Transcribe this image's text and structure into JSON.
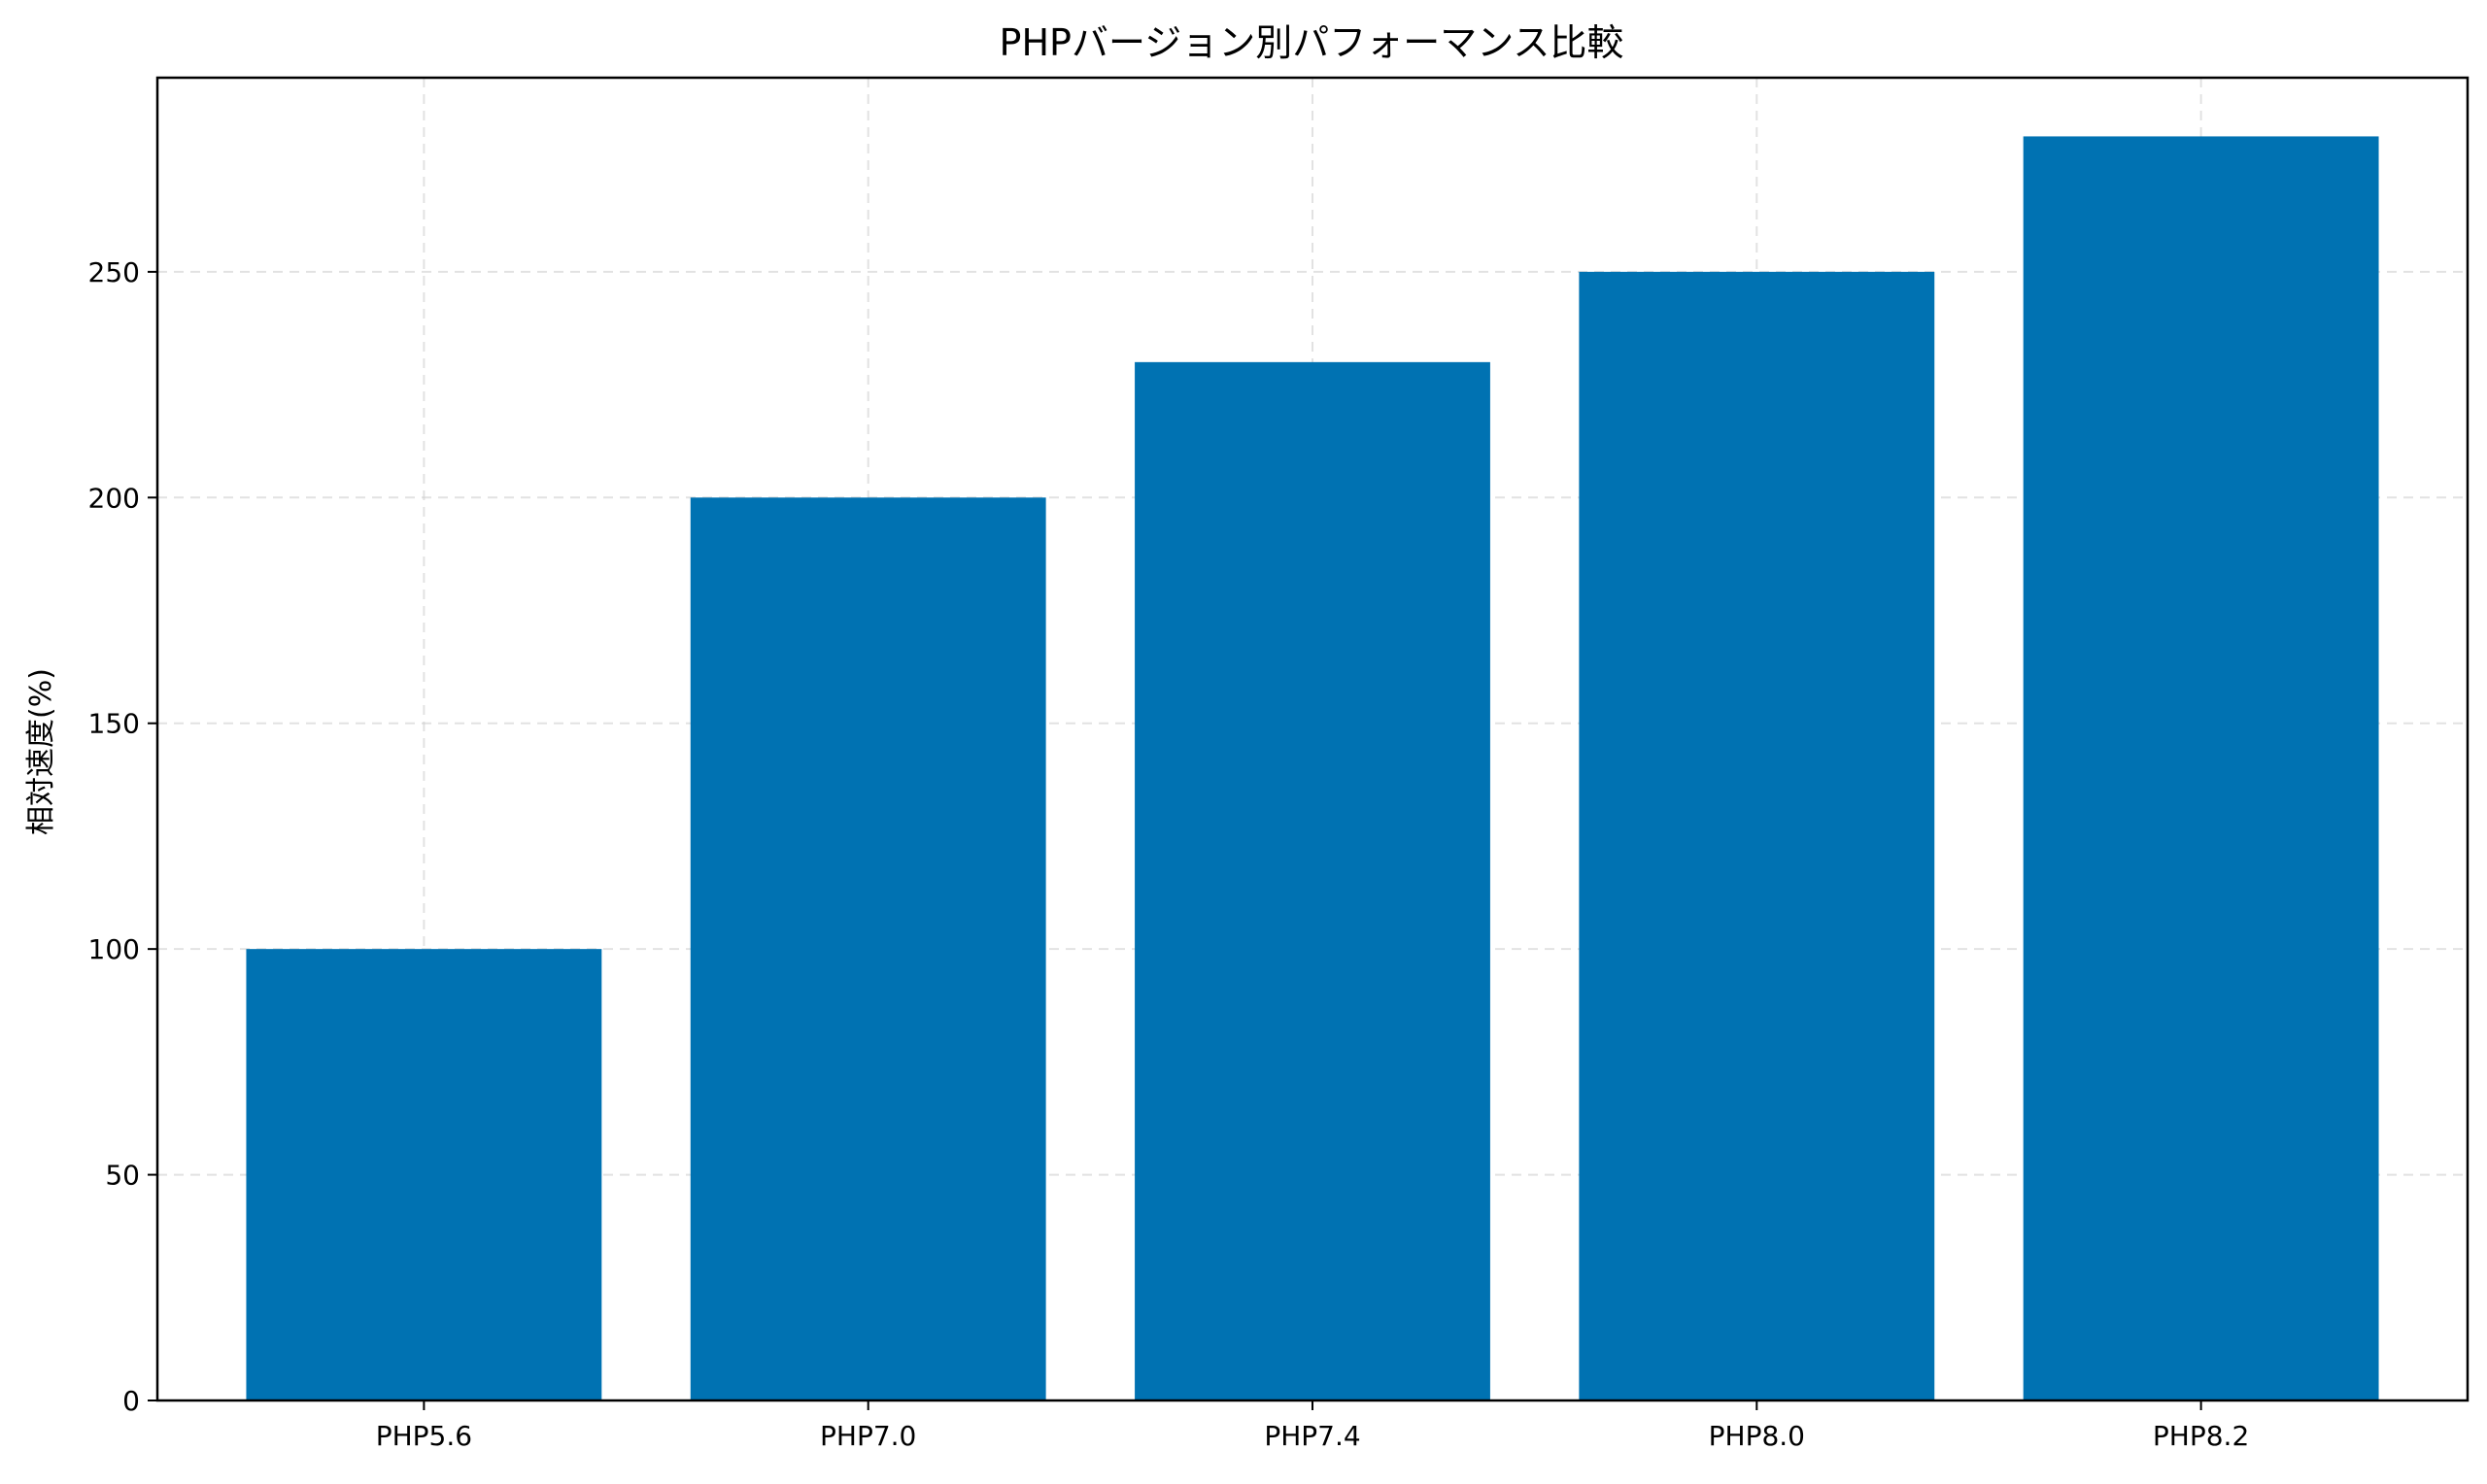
{
  "chart_data": {
    "type": "bar",
    "title": "PHPバージョン別パフォーマンス比較",
    "xlabel": "",
    "ylabel": "相対速度(%)",
    "categories": [
      "PHP5.6",
      "PHP7.0",
      "PHP7.4",
      "PHP8.0",
      "PHP8.2"
    ],
    "values": [
      100,
      200,
      230,
      250,
      280
    ],
    "ylim": [
      0,
      293
    ],
    "yticks": [
      0,
      50,
      100,
      150,
      200,
      250
    ],
    "ytick_labels": [
      "0",
      "50",
      "100",
      "150",
      "200",
      "250"
    ],
    "grid": true,
    "bar_color": "#0072b2"
  }
}
